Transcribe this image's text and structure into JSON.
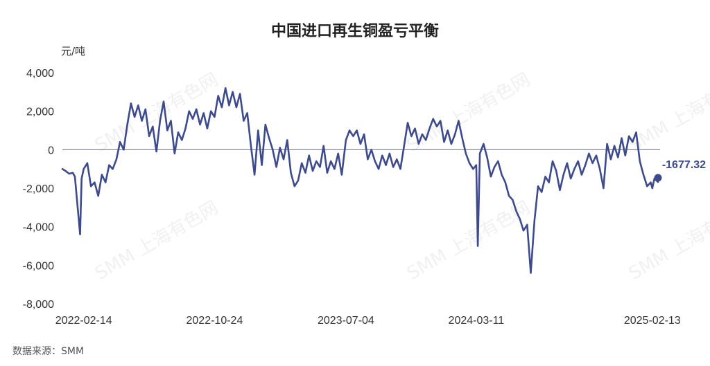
{
  "chart_data": {
    "type": "line",
    "title": "中国进口再生铜盈亏平衡",
    "ylabel": "元/吨",
    "xlabel": "",
    "ylim": [
      -8000,
      4000
    ],
    "yticks": [
      -8000,
      -6000,
      -4000,
      -2000,
      0,
      2000,
      4000
    ],
    "ytick_labels": [
      "-8,000",
      "-6,000",
      "-4,000",
      "-2,000",
      "0",
      "2,000",
      "4,000"
    ],
    "xtick_labels": [
      "2022-02-14",
      "2022-10-24",
      "2023-07-04",
      "2024-03-11",
      "2025-02-13"
    ],
    "grid": false,
    "zero_line": true,
    "series": [
      {
        "color": "#3d4a8c",
        "points": [
          [
            "2022-01-04",
            -1000
          ],
          [
            "2022-01-10",
            -1100
          ],
          [
            "2022-01-17",
            -1250
          ],
          [
            "2022-01-24",
            -1200
          ],
          [
            "2022-01-28",
            -1400
          ],
          [
            "2022-02-07",
            -4400
          ],
          [
            "2022-02-10",
            -1500
          ],
          [
            "2022-02-14",
            -1000
          ],
          [
            "2022-02-21",
            -700
          ],
          [
            "2022-02-28",
            -1900
          ],
          [
            "2022-03-07",
            -1700
          ],
          [
            "2022-03-14",
            -2400
          ],
          [
            "2022-03-21",
            -1300
          ],
          [
            "2022-03-28",
            -1700
          ],
          [
            "2022-04-04",
            -800
          ],
          [
            "2022-04-11",
            -1000
          ],
          [
            "2022-04-18",
            -500
          ],
          [
            "2022-04-25",
            400
          ],
          [
            "2022-05-02",
            0
          ],
          [
            "2022-05-09",
            1300
          ],
          [
            "2022-05-16",
            2400
          ],
          [
            "2022-05-23",
            1700
          ],
          [
            "2022-05-30",
            2300
          ],
          [
            "2022-06-06",
            1500
          ],
          [
            "2022-06-13",
            2100
          ],
          [
            "2022-06-20",
            700
          ],
          [
            "2022-06-27",
            1200
          ],
          [
            "2022-07-04",
            -100
          ],
          [
            "2022-07-11",
            1500
          ],
          [
            "2022-07-18",
            2500
          ],
          [
            "2022-07-25",
            1000
          ],
          [
            "2022-08-01",
            1500
          ],
          [
            "2022-08-08",
            -200
          ],
          [
            "2022-08-15",
            900
          ],
          [
            "2022-08-22",
            500
          ],
          [
            "2022-08-29",
            1100
          ],
          [
            "2022-09-05",
            2000
          ],
          [
            "2022-09-12",
            1600
          ],
          [
            "2022-09-19",
            2100
          ],
          [
            "2022-09-26",
            1300
          ],
          [
            "2022-10-03",
            1900
          ],
          [
            "2022-10-10",
            1100
          ],
          [
            "2022-10-17",
            2000
          ],
          [
            "2022-10-24",
            1700
          ],
          [
            "2022-10-31",
            2800
          ],
          [
            "2022-11-07",
            2200
          ],
          [
            "2022-11-14",
            3200
          ],
          [
            "2022-11-21",
            2300
          ],
          [
            "2022-11-28",
            3000
          ],
          [
            "2022-12-05",
            2200
          ],
          [
            "2022-12-12",
            2900
          ],
          [
            "2022-12-19",
            1500
          ],
          [
            "2022-12-26",
            1900
          ],
          [
            "2023-01-02",
            200
          ],
          [
            "2023-01-09",
            -1300
          ],
          [
            "2023-01-16",
            1000
          ],
          [
            "2023-01-23",
            -800
          ],
          [
            "2023-01-30",
            1300
          ],
          [
            "2023-02-06",
            600
          ],
          [
            "2023-02-13",
            0
          ],
          [
            "2023-02-20",
            -900
          ],
          [
            "2023-02-27",
            100
          ],
          [
            "2023-03-06",
            -500
          ],
          [
            "2023-03-13",
            500
          ],
          [
            "2023-03-20",
            -1200
          ],
          [
            "2023-03-27",
            -1900
          ],
          [
            "2023-04-03",
            -1600
          ],
          [
            "2023-04-10",
            -700
          ],
          [
            "2023-04-17",
            -1200
          ],
          [
            "2023-04-24",
            -300
          ],
          [
            "2023-05-01",
            -1100
          ],
          [
            "2023-05-08",
            -600
          ],
          [
            "2023-05-15",
            -900
          ],
          [
            "2023-05-22",
            200
          ],
          [
            "2023-05-29",
            -1200
          ],
          [
            "2023-06-05",
            -600
          ],
          [
            "2023-06-12",
            -1000
          ],
          [
            "2023-06-19",
            -200
          ],
          [
            "2023-06-26",
            -1300
          ],
          [
            "2023-07-04",
            500
          ],
          [
            "2023-07-11",
            1000
          ],
          [
            "2023-07-18",
            700
          ],
          [
            "2023-07-25",
            1000
          ],
          [
            "2023-08-01",
            300
          ],
          [
            "2023-08-08",
            800
          ],
          [
            "2023-08-15",
            -500
          ],
          [
            "2023-08-22",
            0
          ],
          [
            "2023-08-29",
            -600
          ],
          [
            "2023-09-05",
            -1000
          ],
          [
            "2023-09-12",
            -300
          ],
          [
            "2023-09-19",
            -800
          ],
          [
            "2023-09-26",
            -200
          ],
          [
            "2023-10-03",
            -900
          ],
          [
            "2023-10-10",
            -500
          ],
          [
            "2023-10-17",
            -1000
          ],
          [
            "2023-10-24",
            200
          ],
          [
            "2023-10-31",
            1400
          ],
          [
            "2023-11-07",
            700
          ],
          [
            "2023-11-14",
            1100
          ],
          [
            "2023-11-21",
            300
          ],
          [
            "2023-11-28",
            800
          ],
          [
            "2023-12-05",
            500
          ],
          [
            "2023-12-12",
            1100
          ],
          [
            "2023-12-19",
            1600
          ],
          [
            "2023-12-26",
            1200
          ],
          [
            "2024-01-02",
            1500
          ],
          [
            "2024-01-09",
            400
          ],
          [
            "2024-01-16",
            1000
          ],
          [
            "2024-01-23",
            300
          ],
          [
            "2024-01-30",
            800
          ],
          [
            "2024-02-06",
            1500
          ],
          [
            "2024-02-13",
            600
          ],
          [
            "2024-02-20",
            -200
          ],
          [
            "2024-02-27",
            -700
          ],
          [
            "2024-03-05",
            -1000
          ],
          [
            "2024-03-11",
            -800
          ],
          [
            "2024-03-14",
            -5000
          ],
          [
            "2024-03-18",
            -200
          ],
          [
            "2024-03-25",
            300
          ],
          [
            "2024-04-01",
            -400
          ],
          [
            "2024-04-08",
            -1400
          ],
          [
            "2024-04-15",
            -900
          ],
          [
            "2024-04-22",
            -600
          ],
          [
            "2024-04-29",
            -1300
          ],
          [
            "2024-05-06",
            -1700
          ],
          [
            "2024-05-13",
            -2400
          ],
          [
            "2024-05-20",
            -2600
          ],
          [
            "2024-05-27",
            -3200
          ],
          [
            "2024-06-03",
            -3600
          ],
          [
            "2024-06-10",
            -4200
          ],
          [
            "2024-06-17",
            -3900
          ],
          [
            "2024-06-24",
            -6400
          ],
          [
            "2024-07-01",
            -3700
          ],
          [
            "2024-07-08",
            -1900
          ],
          [
            "2024-07-15",
            -2200
          ],
          [
            "2024-07-22",
            -1400
          ],
          [
            "2024-07-29",
            -1700
          ],
          [
            "2024-08-05",
            -600
          ],
          [
            "2024-08-12",
            -1100
          ],
          [
            "2024-08-19",
            -2100
          ],
          [
            "2024-08-26",
            -1300
          ],
          [
            "2024-09-02",
            -700
          ],
          [
            "2024-09-09",
            -1500
          ],
          [
            "2024-09-16",
            -1000
          ],
          [
            "2024-09-23",
            -600
          ],
          [
            "2024-09-30",
            -1300
          ],
          [
            "2024-10-07",
            -800
          ],
          [
            "2024-10-14",
            -200
          ],
          [
            "2024-10-21",
            -700
          ],
          [
            "2024-10-28",
            -300
          ],
          [
            "2024-11-04",
            -1000
          ],
          [
            "2024-11-11",
            -2000
          ],
          [
            "2024-11-18",
            300
          ],
          [
            "2024-11-25",
            -500
          ],
          [
            "2024-12-02",
            200
          ],
          [
            "2024-12-09",
            -400
          ],
          [
            "2024-12-16",
            600
          ],
          [
            "2024-12-23",
            -300
          ],
          [
            "2024-12-30",
            700
          ],
          [
            "2025-01-06",
            400
          ],
          [
            "2025-01-13",
            900
          ],
          [
            "2025-01-20",
            -600
          ],
          [
            "2025-01-27",
            -1300
          ],
          [
            "2025-02-03",
            -1900
          ],
          [
            "2025-02-10",
            -1700
          ],
          [
            "2025-02-13",
            -2000
          ],
          [
            "2025-02-17",
            -1500
          ],
          [
            "2025-02-24",
            -1677.32
          ]
        ]
      }
    ],
    "end_label": "-1677.32"
  },
  "watermark": "SMM 上海有色网",
  "source": "数据来源：SMM"
}
